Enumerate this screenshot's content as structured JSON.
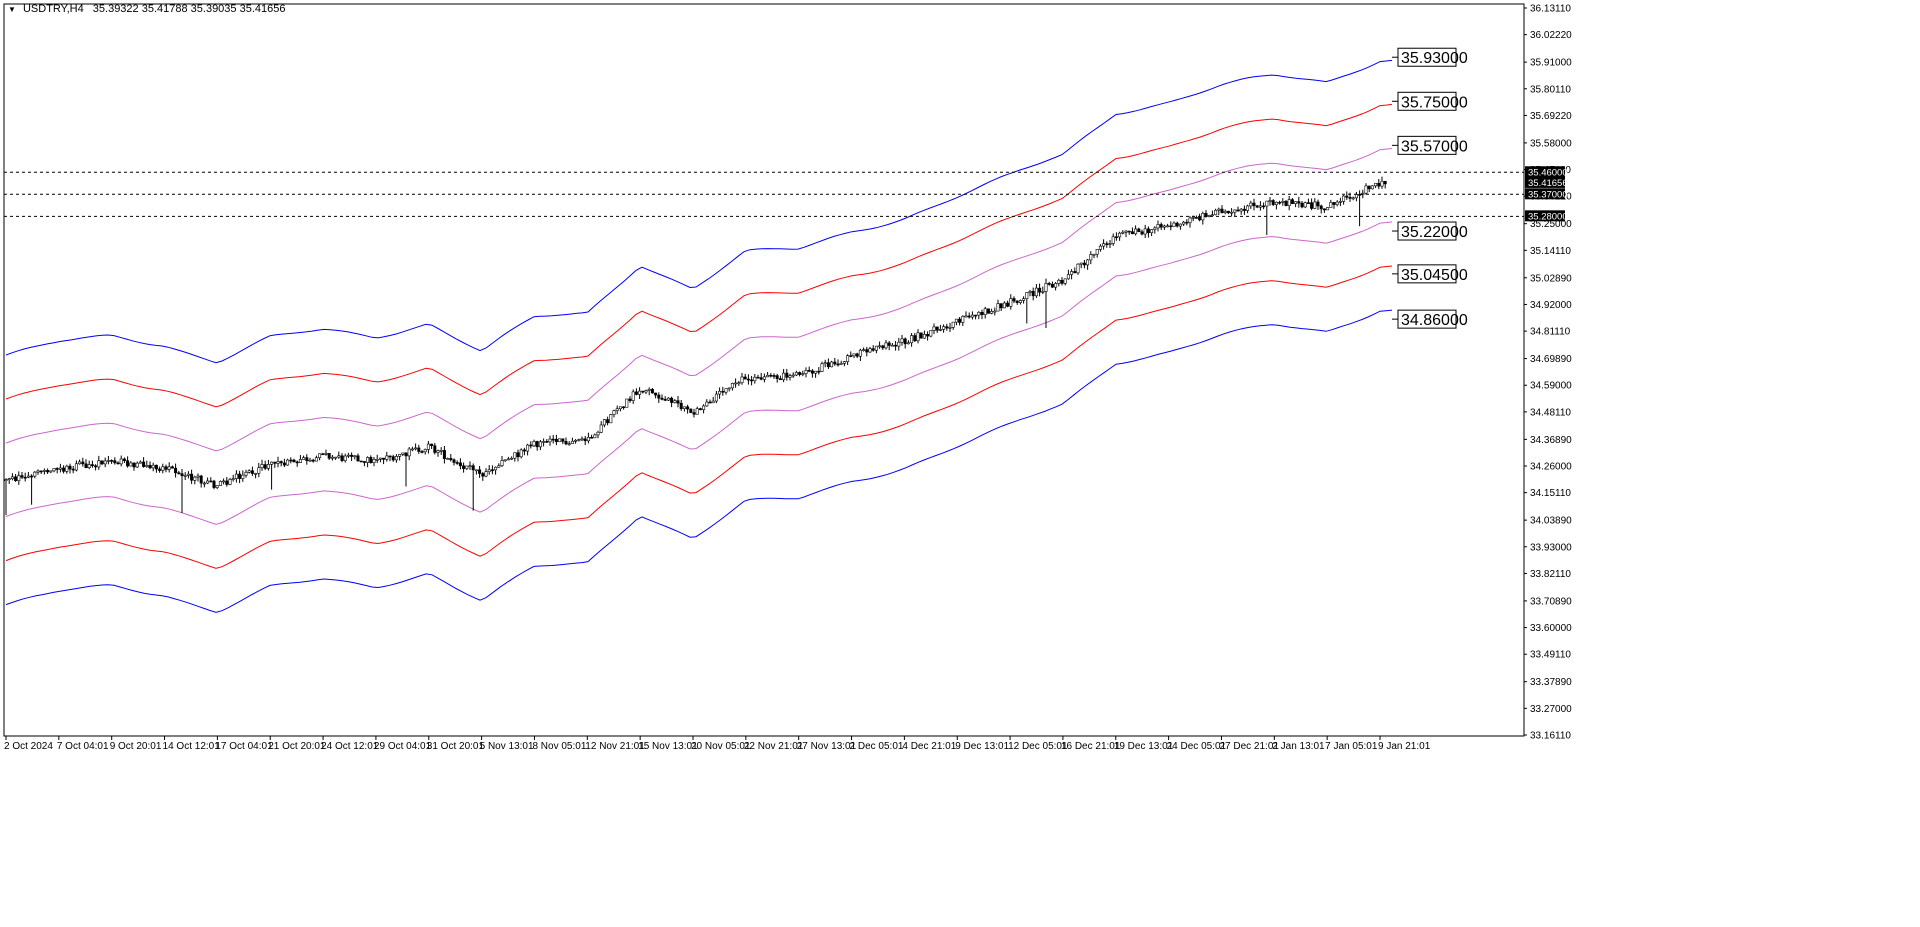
{
  "header": {
    "symbol": "USDTRY,H4",
    "ohlc": "35.39322 35.41788 35.39035 35.41656"
  },
  "price_axis": {
    "ticks": [
      "36.13110",
      "36.02220",
      "35.91000",
      "35.80110",
      "35.69220",
      "35.58000",
      "35.47110",
      "35.36220",
      "35.25000",
      "35.14110",
      "35.02890",
      "34.92000",
      "34.81110",
      "34.69890",
      "34.59000",
      "34.48110",
      "34.36890",
      "34.26000",
      "34.15110",
      "34.03890",
      "33.93000",
      "33.82110",
      "33.70890",
      "33.60000",
      "33.49110",
      "33.37890",
      "33.27000",
      "33.16110"
    ],
    "tags": [
      {
        "label": "35.46000",
        "value": 35.46,
        "style": "line"
      },
      {
        "label": "35.41656",
        "value": 35.41656,
        "style": "current"
      },
      {
        "label": "35.37000",
        "value": 35.37,
        "style": "line"
      },
      {
        "label": "35.28000",
        "value": 35.28,
        "style": "line"
      }
    ]
  },
  "time_axis": {
    "labels": [
      "2 Oct 2024",
      "7 Oct 04:01",
      "9 Oct 20:01",
      "14 Oct 12:01",
      "17 Oct 04:01",
      "21 Oct 20:01",
      "24 Oct 12:01",
      "29 Oct 04:01",
      "31 Oct 20:01",
      "5 Nov 13:01",
      "8 Nov 05:01",
      "12 Nov 21:01",
      "15 Nov 13:01",
      "20 Nov 05:01",
      "22 Nov 21:01",
      "27 Nov 13:01",
      "2 Dec 05:01",
      "4 Dec 21:01",
      "9 Dec 13:01",
      "12 Dec 05:01",
      "16 Dec 21:01",
      "19 Dec 13:01",
      "24 Dec 05:01",
      "27 Dec 21:01",
      "2 Jan 13:01",
      "7 Jan 05:01",
      "9 Jan 21:01"
    ]
  },
  "levels": [
    {
      "label": "35.93000",
      "value": 35.93
    },
    {
      "label": "35.75000",
      "value": 35.75
    },
    {
      "label": "35.57000",
      "value": 35.57
    },
    {
      "label": "35.22000",
      "value": 35.22
    },
    {
      "label": "35.04500",
      "value": 35.045
    },
    {
      "label": "34.86000",
      "value": 34.86
    }
  ],
  "colors": {
    "band_outer": "#0000ff",
    "band_middle": "#ff0000",
    "band_inner": "#cc66cc",
    "candle": "#000000",
    "dashed_line": "#000000",
    "current_tag_bg": "#000000",
    "line_tag_bg": "#000000"
  },
  "chart_data": {
    "type": "candlestick",
    "symbol": "USDTRY",
    "timeframe": "H4",
    "ylim": [
      33.16,
      36.15
    ],
    "close_path": [
      [
        "2 Oct 2024",
        34.2
      ],
      [
        "7 Oct 04:01",
        34.25
      ],
      [
        "9 Oct 20:01",
        34.28
      ],
      [
        "14 Oct 12:01",
        34.25
      ],
      [
        "17 Oct 04:01",
        34.18
      ],
      [
        "21 Oct 20:01",
        34.27
      ],
      [
        "24 Oct 12:01",
        34.3
      ],
      [
        "29 Oct 04:01",
        34.28
      ],
      [
        "31 Oct 20:01",
        34.34
      ],
      [
        "5 Nov 13:01",
        34.22
      ],
      [
        "8 Nov 05:01",
        34.35
      ],
      [
        "12 Nov 21:01",
        34.37
      ],
      [
        "15 Nov 13:01",
        34.58
      ],
      [
        "20 Nov 05:01",
        34.48
      ],
      [
        "22 Nov 21:01",
        34.62
      ],
      [
        "27 Nov 13:01",
        34.63
      ],
      [
        "2 Dec 05:01",
        34.71
      ],
      [
        "4 Dec 21:01",
        34.77
      ],
      [
        "9 Dec 13:01",
        34.85
      ],
      [
        "12 Dec 05:01",
        34.93
      ],
      [
        "16 Dec 21:01",
        35.02
      ],
      [
        "19 Dec 13:01",
        35.2
      ],
      [
        "24 Dec 05:01",
        35.24
      ],
      [
        "27 Dec 21:01",
        35.3
      ],
      [
        "2 Jan 13:01",
        35.34
      ],
      [
        "7 Jan 05:01",
        35.32
      ],
      [
        "9 Jan 21:01",
        35.41656
      ]
    ],
    "bands": {
      "outer_offset": 0.51,
      "middle_offset": 0.33,
      "inner_offset": 0.15
    },
    "horizontal_lines": [
      35.46,
      35.37,
      35.28
    ],
    "level_labels": [
      35.93,
      35.75,
      35.57,
      35.22,
      35.045,
      34.86
    ]
  }
}
